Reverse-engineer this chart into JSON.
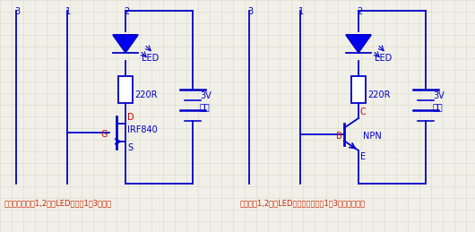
{
  "bg_color": "#f0f0e8",
  "grid_color": "#d8d8c8",
  "circuit_color": "#0000cc",
  "led_color": "#0000ee",
  "text_color_red": "#cc2200",
  "caption_left": "说明：用手触摸1,2之间LED灯亮，1和3之间灭",
  "caption_right": "用手触摸1,2之间LED灯会亮吗，触摸1和3之间会亮吗？",
  "label_3_left": "3",
  "label_1_left": "1",
  "label_2_left": "2",
  "label_3_right": "3",
  "label_1_right": "1",
  "label_2_right": "2",
  "label_G": "G",
  "label_D": "D",
  "label_S": "S",
  "label_B": "B",
  "label_C": "C",
  "label_E": "E",
  "label_IRF840": "IRF840",
  "label_NPN": "NPN",
  "label_LED_left": "LED",
  "label_LED_right": "LED",
  "label_220R_left": "220R",
  "label_220R_right": "220R",
  "label_3V_left": "3V",
  "label_3V_right": "3V",
  "label_power_left": "电源",
  "label_power_right": "电源"
}
